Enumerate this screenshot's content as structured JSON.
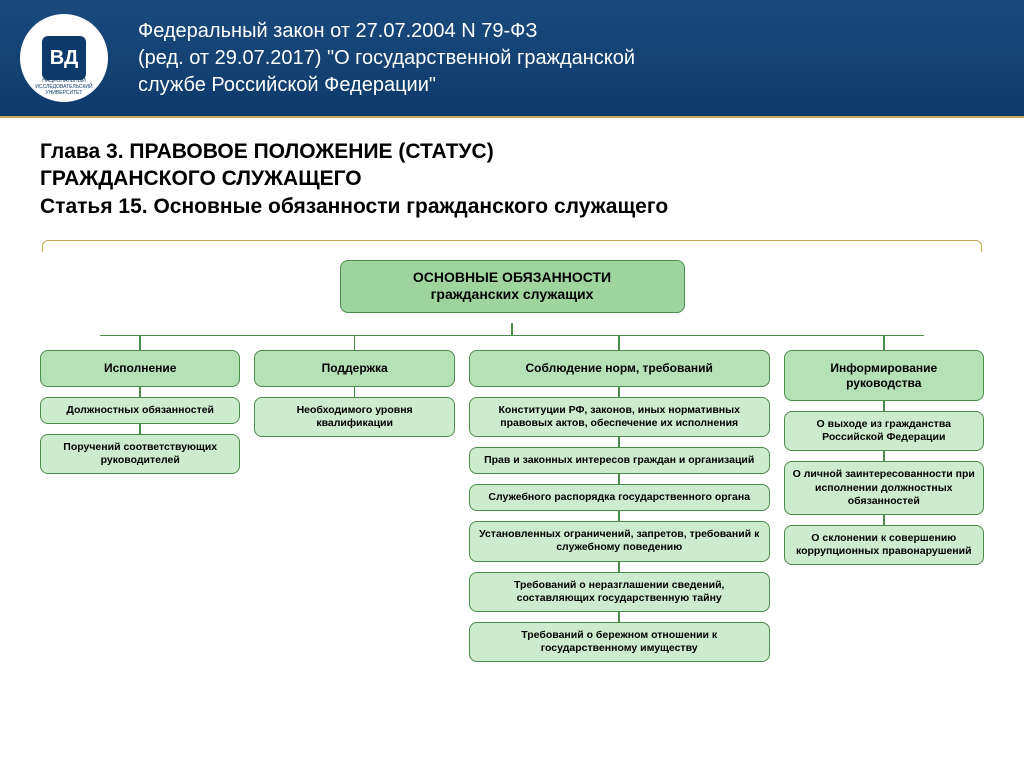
{
  "header": {
    "logo_letters": "ВД",
    "logo_caption": "НАЦИОНАЛЬНЫЙ ИССЛЕДОВАТЕЛЬСКИЙ УНИВЕРСИТЕТ",
    "title_line1": "Федеральный закон от 27.07.2004 N 79-ФЗ",
    "title_line2": "(ред. от 29.07.2017) \"О государственной гражданской",
    "title_line3": "службе Российской Федерации\""
  },
  "subtitle": {
    "line1": "Глава 3. ПРАВОВОЕ ПОЛОЖЕНИЕ (СТАТУС)",
    "line2": "ГРАЖДАНСКОГО СЛУЖАЩЕГО",
    "line3": "Статья 15. Основные обязанности гражданского служащего"
  },
  "diagram": {
    "main_title_l1": "ОСНОВНЫЕ ОБЯЗАННОСТИ",
    "main_title_l2": "гражданских служащих",
    "colors": {
      "main_bg": "#9fd49f",
      "cat_bg": "#b6e0b6",
      "item_bg": "#cdeccd",
      "border": "#4a8c4a",
      "bracket": "#c9a94f"
    },
    "columns": [
      {
        "category": "Исполнение",
        "items": [
          "Должностных обязанностей",
          "Поручений соответствующих руководителей"
        ]
      },
      {
        "category": "Поддержка",
        "items": [
          "Необходимого уровня квалификации"
        ]
      },
      {
        "category": "Соблюдение норм, требований",
        "wide": true,
        "items": [
          "Конституции РФ, законов, иных нормативных правовых актов, обеспечение их исполнения",
          "Прав и законных интересов граждан и организаций",
          "Служебного распорядка государственного органа",
          "Установленных ограничений, запретов, требований к служебному поведению",
          "Требований о неразглашении сведений, составляющих государственную тайну",
          "Требований о бережном отношении к государственному имуществу"
        ]
      },
      {
        "category": "Информирование руководства",
        "items": [
          "О выходе из гражданства Российской Федерации",
          "О личной заинтересованности при исполнении должностных обязанностей",
          "О склонении к совершению коррупционных правонарушений"
        ]
      }
    ]
  }
}
